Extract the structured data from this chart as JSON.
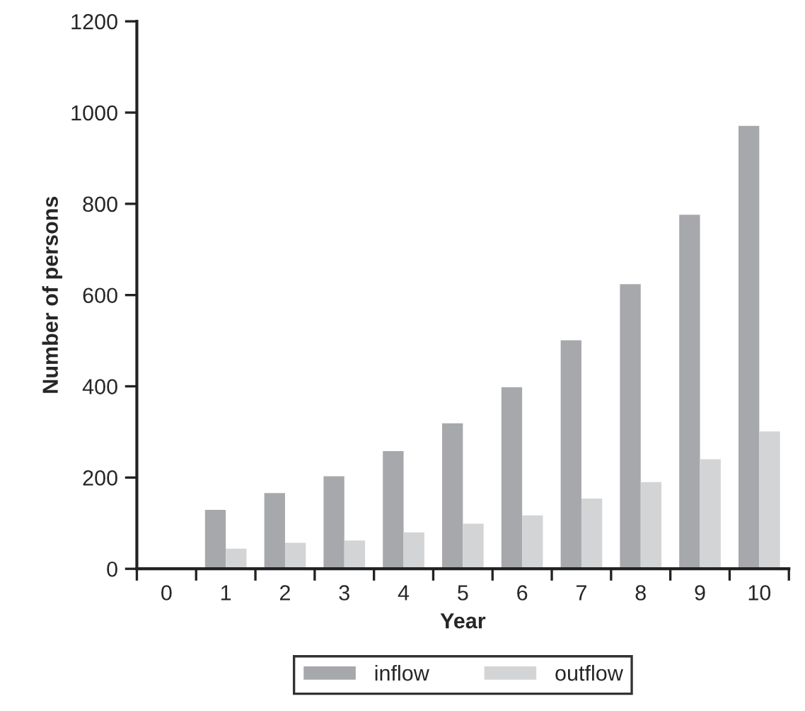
{
  "chart_data": {
    "type": "bar",
    "xlabel": "Year",
    "ylabel": "Number of persons",
    "categories": [
      "0",
      "1",
      "2",
      "3",
      "4",
      "5",
      "6",
      "7",
      "8",
      "9",
      "10"
    ],
    "series": [
      {
        "name": "inflow",
        "color": "#a7a8ab",
        "values": [
          null,
          129,
          166,
          203,
          258,
          319,
          398,
          501,
          624,
          776,
          971
        ]
      },
      {
        "name": "outflow",
        "color": "#d3d4d6",
        "values": [
          null,
          44,
          57,
          62,
          80,
          99,
          117,
          154,
          190,
          240,
          301
        ]
      }
    ],
    "ylim": [
      0,
      1200
    ],
    "yticks": [
      0,
      200,
      400,
      600,
      800,
      1000,
      1200
    ],
    "grid": false,
    "legend": "bottom"
  }
}
